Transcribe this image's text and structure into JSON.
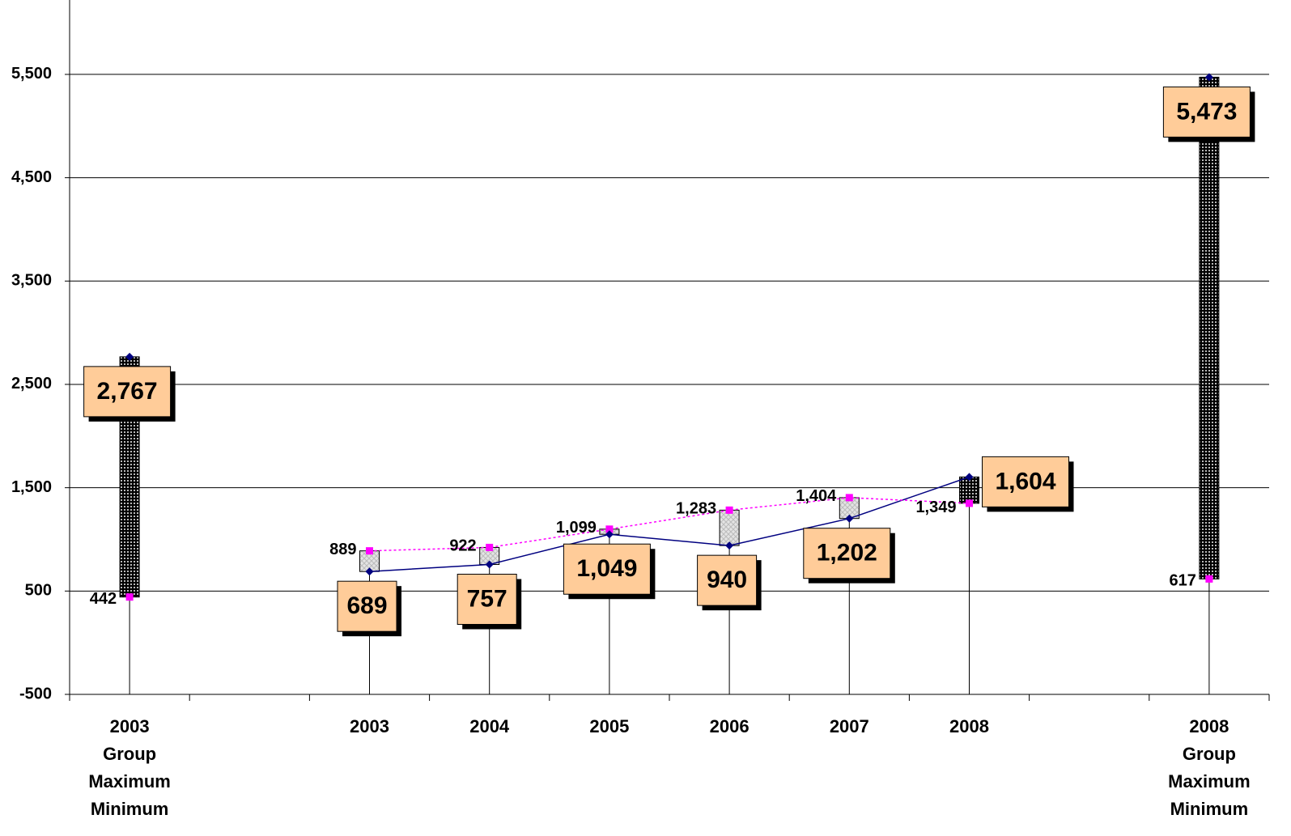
{
  "chart_data": {
    "type": "line",
    "categories": [
      "2003\nGroup\nMaximum\nMinimum",
      null,
      "2003",
      "2004",
      "2005",
      "2006",
      "2007",
      "2008",
      null,
      "2008\nGroup\nMaximum\nMinimum"
    ],
    "series": [
      {
        "color": "#000080",
        "values": [
          2767,
          null,
          689,
          757,
          1049,
          940,
          1202,
          1604,
          null,
          5473
        ],
        "value_labels": [
          "2,767",
          null,
          "689",
          "757",
          "1,049",
          "940",
          "1,202",
          "1,604",
          null,
          "5,473"
        ]
      },
      {
        "color": "#ff00ff",
        "values": [
          442,
          null,
          889,
          922,
          1099,
          1283,
          1404,
          1349,
          null,
          617
        ],
        "value_labels": [
          "442",
          null,
          "889",
          "922",
          "1,099",
          "1,283",
          "1,404",
          "1,349",
          null,
          "617"
        ]
      }
    ],
    "ylim": [
      -500,
      6220
    ],
    "yticks": [
      {
        "value": -500,
        "label": "-500"
      },
      500,
      {
        "value": 1500,
        "label": "1,500"
      },
      {
        "value": 2500,
        "label": "2,500"
      },
      {
        "value": 3500,
        "label": "3,500"
      },
      {
        "value": 4500,
        "label": "4,500"
      },
      {
        "value": 5500,
        "label": "5,500"
      }
    ],
    "grid": true
  }
}
